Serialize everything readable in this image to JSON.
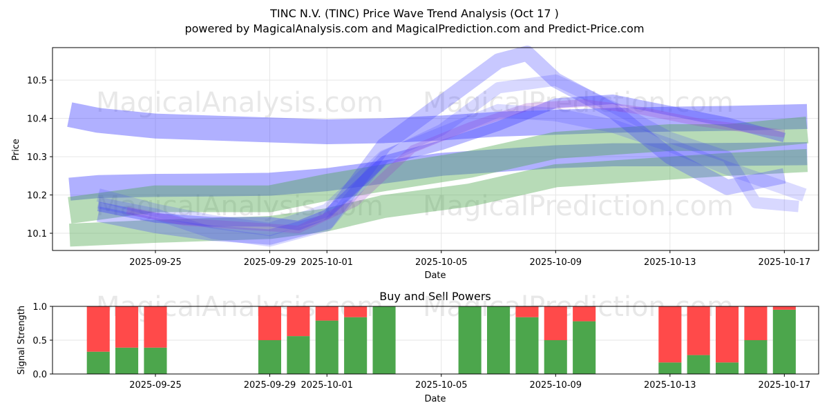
{
  "title_line1": "TINC N.V. (TINC) Price Wave Trend Analysis (Oct 17 )",
  "title_line2": "powered by MagicalAnalysis.com and MagicalPrediction.com and Predict-Price.com",
  "watermarks": [
    "MagicalAnalysis.com",
    "MagicalPrediction.com"
  ],
  "colors": {
    "buy": "#4ca64c",
    "sell": "#ff4a4a",
    "blue_band": "#3a3aff",
    "green_band": "#4ca64c",
    "axis": "#000000",
    "grid": "#e6e6e6"
  },
  "chart_data": [
    {
      "type": "area",
      "title": "",
      "xlabel": "Date",
      "ylabel": "Price",
      "x_tick_labels": [
        "2025-09-25",
        "2025-09-29",
        "2025-10-01",
        "2025-10-05",
        "2025-10-09",
        "2025-10-13",
        "2025-10-17"
      ],
      "x_tick_days": [
        2,
        6,
        8,
        12,
        16,
        20,
        24
      ],
      "xlim_days": [
        -1.6,
        25.2
      ],
      "y_ticks": [
        10.1,
        10.2,
        10.3,
        10.4,
        10.5
      ],
      "ylim": [
        10.055,
        10.585
      ],
      "x_day_zero": "2025-09-23",
      "series": [
        {
          "name": "upper-blue-band",
          "color": "blue",
          "alpha": 0.4,
          "width": 0.065,
          "x": [
            -1,
            0,
            2,
            4,
            6,
            8,
            10,
            12,
            14,
            16,
            18,
            20,
            22,
            24.8
          ],
          "y": [
            10.41,
            10.395,
            10.38,
            10.375,
            10.37,
            10.365,
            10.368,
            10.375,
            10.385,
            10.39,
            10.395,
            10.398,
            10.4,
            10.405
          ]
        },
        {
          "name": "lower-blue-band",
          "color": "blue",
          "alpha": 0.4,
          "width": 0.06,
          "x": [
            -1,
            0,
            2,
            4,
            6,
            8,
            10,
            12,
            14,
            16,
            18,
            20,
            22,
            24.8
          ],
          "y": [
            10.215,
            10.222,
            10.225,
            10.226,
            10.228,
            10.24,
            10.26,
            10.28,
            10.29,
            10.3,
            10.305,
            10.305,
            10.306,
            10.308
          ]
        },
        {
          "name": "green-upper-band",
          "color": "green",
          "alpha": 0.4,
          "width": 0.07,
          "x": [
            -1,
            2,
            6,
            8,
            10,
            13,
            16,
            20,
            22,
            24.8
          ],
          "y": [
            10.16,
            10.19,
            10.19,
            10.22,
            10.245,
            10.28,
            10.33,
            10.35,
            10.35,
            10.37
          ]
        },
        {
          "name": "green-lower-band",
          "color": "green",
          "alpha": 0.4,
          "width": 0.06,
          "x": [
            -1,
            2,
            6,
            8,
            10,
            13,
            16,
            20,
            22,
            24.8
          ],
          "y": [
            10.095,
            10.105,
            10.115,
            10.135,
            10.17,
            10.2,
            10.25,
            10.27,
            10.28,
            10.29
          ]
        },
        {
          "name": "wave-dark",
          "color": "blue",
          "alpha": 0.35,
          "width": 0.025,
          "x": [
            0,
            2,
            4,
            6,
            7,
            8,
            10,
            12,
            14,
            16,
            18,
            20,
            22,
            24
          ],
          "y": [
            10.17,
            10.14,
            10.13,
            10.13,
            10.12,
            10.15,
            10.29,
            10.33,
            10.38,
            10.44,
            10.45,
            10.42,
            10.39,
            10.35
          ]
        },
        {
          "name": "wave-mid",
          "color": "blue",
          "alpha": 0.28,
          "width": 0.04,
          "x": [
            0,
            2,
            4,
            6,
            8,
            10,
            12,
            14,
            15,
            16,
            18,
            20,
            22,
            24
          ],
          "y": [
            10.15,
            10.12,
            10.1,
            10.09,
            10.13,
            10.33,
            10.44,
            10.55,
            10.57,
            10.5,
            10.42,
            10.3,
            10.22,
            10.25
          ]
        },
        {
          "name": "wave-light",
          "color": "blue",
          "alpha": 0.2,
          "width": 0.03,
          "x": [
            0,
            2,
            4,
            6,
            8,
            10,
            12,
            14,
            16,
            18,
            20,
            22,
            23,
            24.5
          ],
          "y": [
            10.18,
            10.15,
            10.1,
            10.08,
            10.12,
            10.3,
            10.37,
            10.48,
            10.5,
            10.43,
            10.35,
            10.3,
            10.18,
            10.17
          ]
        },
        {
          "name": "wave-purple",
          "color": "purple",
          "alpha": 0.25,
          "width": 0.02,
          "x": [
            1,
            3,
            5,
            7,
            9,
            11,
            13,
            15,
            17,
            19,
            21,
            23,
            24
          ],
          "y": [
            10.16,
            10.13,
            10.12,
            10.11,
            10.18,
            10.32,
            10.38,
            10.43,
            10.44,
            10.42,
            10.39,
            10.37,
            10.36
          ]
        },
        {
          "name": "wave-light-2",
          "color": "blue",
          "alpha": 0.18,
          "width": 0.035,
          "x": [
            0,
            2,
            4,
            6,
            8,
            10,
            12,
            14,
            16,
            18,
            20,
            22,
            24.7
          ],
          "y": [
            10.2,
            10.16,
            10.13,
            10.11,
            10.16,
            10.3,
            10.36,
            10.42,
            10.41,
            10.38,
            10.33,
            10.27,
            10.2
          ]
        }
      ]
    },
    {
      "type": "bar",
      "title": "Buy and Sell Powers",
      "xlabel": "Date",
      "ylabel": "Signal Strength",
      "ylim": [
        0,
        1
      ],
      "y_ticks": [
        "0.0",
        "0.5",
        "1.0"
      ],
      "x_tick_labels": [
        "2025-09-25",
        "2025-09-29",
        "2025-10-01",
        "2025-10-05",
        "2025-10-09",
        "2025-10-13",
        "2025-10-17"
      ],
      "x_tick_days": [
        2,
        6,
        8,
        12,
        16,
        20,
        24
      ],
      "xlim_days": [
        -1.6,
        25.2
      ],
      "bar_days": [
        0,
        1,
        2,
        6,
        7,
        8,
        9,
        10,
        13,
        14,
        15,
        16,
        17,
        20,
        21,
        22,
        23,
        24
      ],
      "buy_values": [
        0.33,
        0.39,
        0.39,
        0.5,
        0.56,
        0.79,
        0.84,
        1.0,
        1.0,
        1.0,
        0.84,
        0.5,
        0.78,
        0.17,
        0.28,
        0.17,
        0.5,
        0.95
      ]
    }
  ]
}
